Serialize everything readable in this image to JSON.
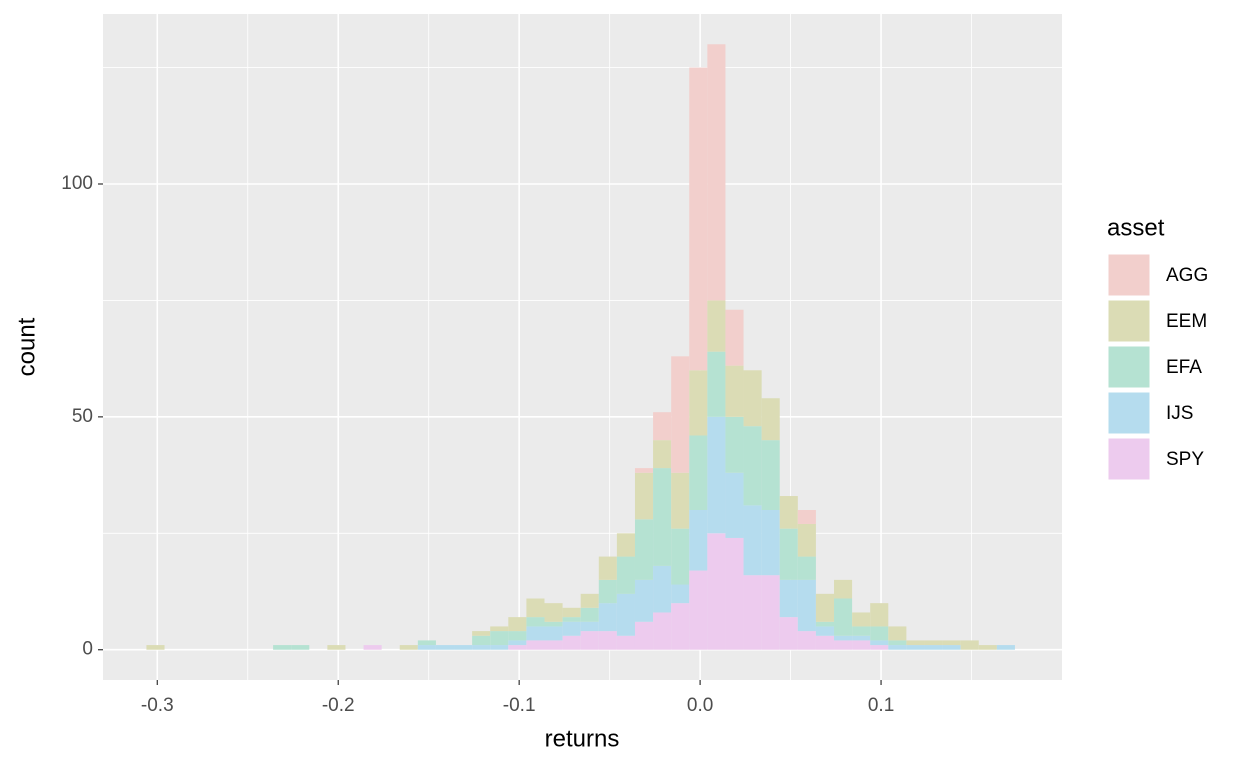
{
  "chart_data": {
    "type": "histogram",
    "x_label": "returns",
    "y_label": "count",
    "legend_title": "asset",
    "legend_position": "right",
    "stacked": true,
    "grid": true,
    "bins": [
      -0.306,
      -0.296,
      -0.286,
      -0.276,
      -0.266,
      -0.256,
      -0.246,
      -0.236,
      -0.226,
      -0.216,
      -0.206,
      -0.196,
      -0.186,
      -0.176,
      -0.166,
      -0.156,
      -0.146,
      -0.136,
      -0.126,
      -0.116,
      -0.106,
      -0.096,
      -0.086,
      -0.076,
      -0.066,
      -0.056,
      -0.046,
      -0.036,
      -0.026,
      -0.016,
      -0.006,
      0.004,
      0.014,
      0.024,
      0.034,
      0.044,
      0.054,
      0.064,
      0.074,
      0.084,
      0.094,
      0.104,
      0.114,
      0.124,
      0.134,
      0.144,
      0.154,
      0.164,
      0.174
    ],
    "series": [
      {
        "name": "AGG",
        "color": "#f2cfcc",
        "values": [
          0,
          0,
          0,
          0,
          0,
          0,
          0,
          0,
          0,
          0,
          0,
          0,
          0,
          0,
          0,
          0,
          0,
          0,
          0,
          0,
          0,
          0,
          0,
          0,
          0,
          0,
          0,
          1,
          6,
          25,
          65,
          55,
          12,
          0,
          0,
          0,
          3,
          0,
          0,
          0,
          0,
          0,
          0,
          0,
          0,
          0,
          0,
          0
        ]
      },
      {
        "name": "EEM",
        "color": "#dbdcb5",
        "values": [
          1,
          0,
          0,
          0,
          0,
          0,
          0,
          0,
          0,
          0,
          1,
          0,
          0,
          0,
          1,
          0,
          0,
          0,
          1,
          1,
          3,
          4,
          4,
          2,
          3,
          5,
          5,
          10,
          6,
          12,
          14,
          11,
          11,
          12,
          9,
          7,
          7,
          6,
          4,
          3,
          5,
          3,
          1,
          1,
          1,
          2,
          1,
          0
        ]
      },
      {
        "name": "EFA",
        "color": "#b5e2d2",
        "values": [
          0,
          0,
          0,
          0,
          0,
          0,
          0,
          1,
          1,
          0,
          0,
          0,
          0,
          0,
          0,
          1,
          0,
          0,
          2,
          3,
          2,
          2,
          1,
          1,
          3,
          5,
          8,
          13,
          21,
          12,
          16,
          14,
          12,
          17,
          15,
          11,
          5,
          1,
          8,
          2,
          3,
          1,
          0,
          0,
          0,
          0,
          0,
          0
        ]
      },
      {
        "name": "IJS",
        "color": "#b5dcee",
        "values": [
          0,
          0,
          0,
          0,
          0,
          0,
          0,
          0,
          0,
          0,
          0,
          0,
          0,
          0,
          0,
          1,
          1,
          1,
          1,
          1,
          1,
          3,
          3,
          3,
          2,
          6,
          9,
          9,
          10,
          4,
          13,
          25,
          14,
          15,
          14,
          8,
          11,
          2,
          1,
          1,
          1,
          1,
          1,
          1,
          1,
          0,
          0,
          1
        ]
      },
      {
        "name": "SPY",
        "color": "#edcbee",
        "values": [
          0,
          0,
          0,
          0,
          0,
          0,
          0,
          0,
          0,
          0,
          0,
          0,
          1,
          0,
          0,
          0,
          0,
          0,
          0,
          0,
          1,
          2,
          2,
          3,
          4,
          4,
          3,
          6,
          8,
          10,
          17,
          25,
          24,
          16,
          16,
          7,
          4,
          3,
          2,
          2,
          1,
          0,
          0,
          0,
          0,
          0,
          0,
          0
        ]
      }
    ],
    "xlim": [
      -0.33,
      0.2
    ],
    "ylim": [
      -6.5,
      136.5
    ],
    "xticks": [
      -0.3,
      -0.2,
      -0.1,
      {
        "value": 0,
        "label": "0.0"
      },
      0.1
    ],
    "yticks": [
      0,
      50,
      100
    ],
    "x_minor_grid": [
      -0.25,
      -0.15,
      -0.05,
      0.05,
      0.15
    ],
    "y_minor_grid": [
      25,
      75,
      125
    ]
  }
}
